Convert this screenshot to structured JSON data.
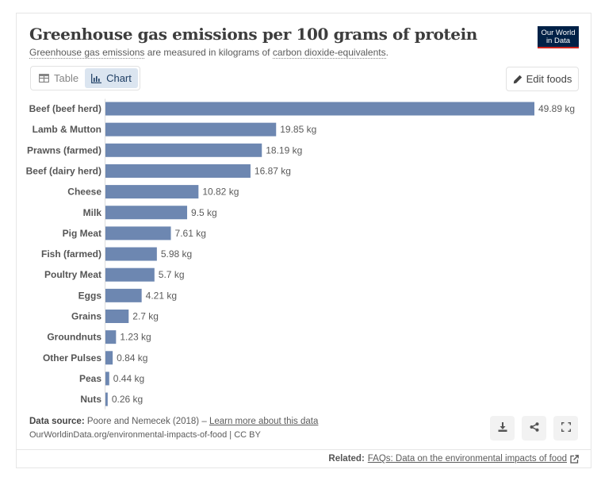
{
  "header": {
    "title": "Greenhouse gas emissions per 100 grams of protein",
    "subtitle_link1": "Greenhouse gas emissions",
    "subtitle_mid": " are measured in kilograms of ",
    "subtitle_link2": "carbon dioxide-equivalents",
    "subtitle_end": ".",
    "logo_line1": "Our World",
    "logo_line2": "in Data"
  },
  "tabs": [
    {
      "label": "Table",
      "icon": "table-icon",
      "active": false
    },
    {
      "label": "Chart",
      "icon": "chart-icon",
      "active": true
    }
  ],
  "edit_button": {
    "label": "Edit foods",
    "icon": "pencil-icon"
  },
  "chart_data": {
    "type": "bar",
    "orientation": "horizontal",
    "title": "Greenhouse gas emissions per 100 grams of protein",
    "unit": "kg",
    "categories": [
      "Beef (beef herd)",
      "Lamb & Mutton",
      "Prawns (farmed)",
      "Beef (dairy herd)",
      "Cheese",
      "Milk",
      "Pig Meat",
      "Fish (farmed)",
      "Poultry Meat",
      "Eggs",
      "Grains",
      "Groundnuts",
      "Other Pulses",
      "Peas",
      "Nuts"
    ],
    "values": [
      49.89,
      19.85,
      18.19,
      16.87,
      10.82,
      9.5,
      7.61,
      5.98,
      5.7,
      4.21,
      2.7,
      1.23,
      0.84,
      0.44,
      0.26
    ],
    "labels": [
      "49.89 kg",
      "19.85 kg",
      "18.19 kg",
      "16.87 kg",
      "10.82 kg",
      "9.5 kg",
      "7.61 kg",
      "5.98 kg",
      "5.7 kg",
      "4.21 kg",
      "2.7 kg",
      "1.23 kg",
      "0.84 kg",
      "0.44 kg",
      "0.26 kg"
    ],
    "xlim": [
      0,
      49.89
    ],
    "bar_color": "#6d87b1",
    "grid": false
  },
  "footer": {
    "source_label": "Data source:",
    "source_text": " Poore and Nemecek (2018) – ",
    "source_link": "Learn more about this data",
    "url_text": "OurWorldinData.org/environmental-impacts-of-food | CC BY",
    "actions": [
      {
        "name": "download",
        "icon": "download-icon"
      },
      {
        "name": "share",
        "icon": "share-icon"
      },
      {
        "name": "fullscreen",
        "icon": "fullscreen-icon"
      }
    ],
    "related_label": "Related:",
    "related_link": "FAQs: Data on the environmental impacts of food"
  }
}
